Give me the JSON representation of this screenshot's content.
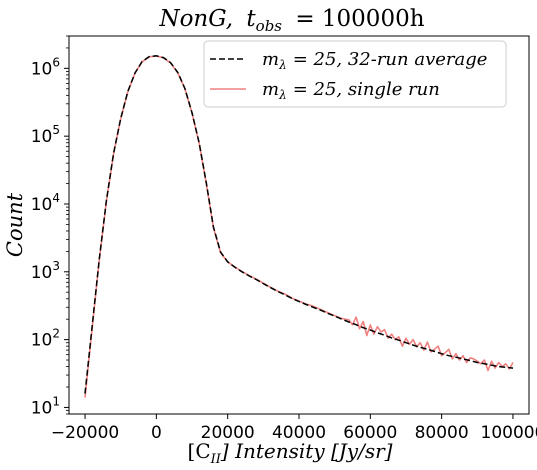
{
  "chart_data": {
    "type": "line",
    "title": "NonG, t_obs = 100000h",
    "title_parts": {
      "name": "NonG,",
      "t": "t",
      "sub": "obs",
      "rest": "= 100000h"
    },
    "xlabel": "[C_II] Intensity [Jy/sr]",
    "xlabel_parts": {
      "open": "[C",
      "sub": "II",
      "rest": "] Intensity [Jy/sr]"
    },
    "ylabel": "Count",
    "xlim": [
      -24500,
      104500
    ],
    "ylim": [
      8,
      3000000
    ],
    "yscale": "log",
    "grid": false,
    "legend_position": "top-right",
    "x_ticks": [
      {
        "value": -20000,
        "label": "−20000"
      },
      {
        "value": 0,
        "label": "0"
      },
      {
        "value": 20000,
        "label": "20000"
      },
      {
        "value": 40000,
        "label": "40000"
      },
      {
        "value": 60000,
        "label": "60000"
      },
      {
        "value": 80000,
        "label": "80000"
      },
      {
        "value": 100000,
        "label": "100000"
      }
    ],
    "y_ticks": [
      {
        "value": 10,
        "base": "10",
        "exp": "1"
      },
      {
        "value": 100,
        "base": "10",
        "exp": "2"
      },
      {
        "value": 1000,
        "base": "10",
        "exp": "3"
      },
      {
        "value": 10000,
        "base": "10",
        "exp": "4"
      },
      {
        "value": 100000,
        "base": "10",
        "exp": "5"
      },
      {
        "value": 1000000,
        "base": "10",
        "exp": "6"
      }
    ],
    "series": [
      {
        "name": "m_λ = 25, single run",
        "legend": {
          "m": "m",
          "sub": "λ",
          "rest": "= 25, single run"
        },
        "color": "#f08080",
        "dash": "none",
        "x": [
          -20000,
          -18000,
          -16000,
          -14000,
          -12000,
          -10000,
          -8000,
          -6000,
          -4000,
          -2000,
          0,
          2000,
          4000,
          6000,
          8000,
          10000,
          12000,
          14000,
          16000,
          18000,
          20000,
          22000,
          24000,
          26000,
          28000,
          30000,
          32000,
          34000,
          36000,
          38000,
          40000,
          42000,
          44000,
          46000,
          48000,
          50000,
          52000,
          54000,
          55000,
          56000,
          57000,
          58000,
          59000,
          60000,
          61000,
          62000,
          63000,
          64000,
          65000,
          66000,
          67000,
          68000,
          69000,
          70000,
          71000,
          72000,
          73000,
          74000,
          75000,
          76000,
          77000,
          78000,
          79000,
          80000,
          81000,
          82000,
          83000,
          84000,
          85000,
          86000,
          87000,
          88000,
          89000,
          90000,
          91000,
          92000,
          93000,
          94000,
          95000,
          96000,
          97000,
          98000,
          99000,
          100000
        ],
        "y": [
          14,
          150,
          1500,
          11000,
          55000,
          180000,
          450000,
          850000,
          1250000,
          1480000,
          1520000,
          1430000,
          1200000,
          860000,
          500000,
          220000,
          78000,
          20000,
          4500,
          1900,
          1400,
          1180,
          1010,
          880,
          780,
          680,
          590,
          520,
          470,
          410,
          370,
          335,
          310,
          280,
          250,
          225,
          205,
          195,
          165,
          215,
          145,
          185,
          115,
          165,
          120,
          155,
          130,
          140,
          105,
          120,
          100,
          110,
          80,
          105,
          85,
          100,
          78,
          90,
          70,
          92,
          66,
          72,
          80,
          58,
          64,
          72,
          52,
          62,
          50,
          58,
          46,
          54,
          52,
          48,
          44,
          50,
          35,
          48,
          38,
          46,
          40,
          44,
          37,
          46
        ]
      },
      {
        "name": "m_λ = 25, 32-run average",
        "legend": {
          "m": "m",
          "sub": "λ",
          "rest": "= 25, 32-run average"
        },
        "color": "#000000",
        "dash": "6,3",
        "x": [
          -20000,
          -18000,
          -16000,
          -14000,
          -12000,
          -10000,
          -8000,
          -6000,
          -4000,
          -2000,
          0,
          2000,
          4000,
          6000,
          8000,
          10000,
          12000,
          14000,
          16000,
          18000,
          20000,
          22000,
          24000,
          26000,
          28000,
          30000,
          32000,
          34000,
          36000,
          38000,
          40000,
          42000,
          44000,
          46000,
          48000,
          50000,
          52000,
          54000,
          56000,
          58000,
          60000,
          62000,
          64000,
          66000,
          68000,
          70000,
          72000,
          74000,
          76000,
          78000,
          80000,
          82000,
          84000,
          86000,
          88000,
          90000,
          92000,
          94000,
          96000,
          98000,
          100000
        ],
        "y": [
          16,
          160,
          1550,
          11200,
          56000,
          182000,
          455000,
          855000,
          1260000,
          1490000,
          1530000,
          1440000,
          1210000,
          870000,
          505000,
          222000,
          79000,
          20500,
          4600,
          1950,
          1400,
          1170,
          1000,
          870,
          770,
          670,
          585,
          515,
          460,
          405,
          365,
          330,
          300,
          272,
          245,
          222,
          200,
          182,
          166,
          150,
          138,
          126,
          116,
          106,
          98,
          90,
          83,
          77,
          72,
          67,
          62,
          58,
          55,
          52,
          49,
          46,
          44,
          42,
          40,
          39,
          38
        ]
      }
    ]
  }
}
